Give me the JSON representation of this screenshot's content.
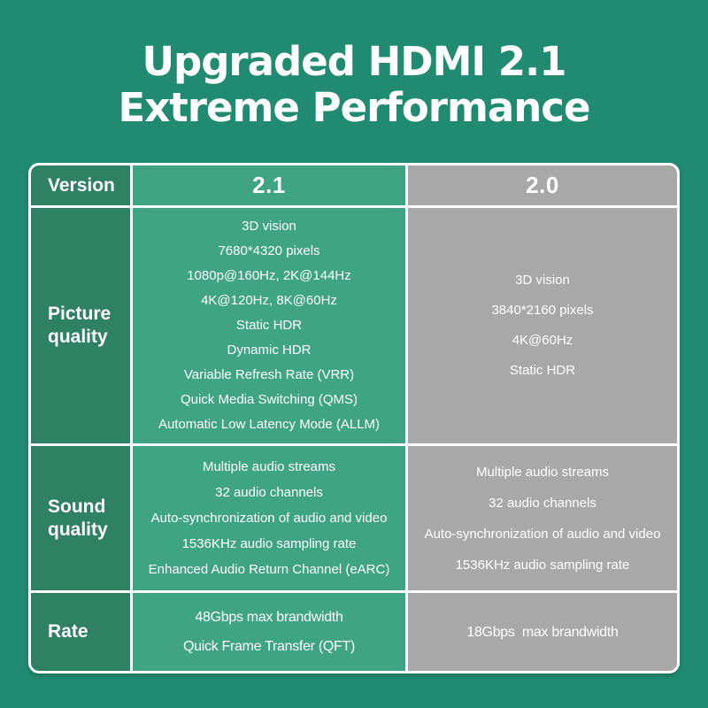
{
  "title": {
    "lines": [
      "Upgraded HDMI 2.1",
      "Extreme Performance"
    ]
  },
  "colors": {
    "page_background": "#208b71",
    "label_column": "#2e8163",
    "column_21": "#3ea481",
    "column_20": "#a8a8a8",
    "grid_lines": "#ffffff",
    "text": "#ffffff"
  },
  "chart_data": {
    "type": "table",
    "title": "Upgraded HDMI 2.1 Extreme Performance",
    "columns": [
      "Version",
      "2.1",
      "2.0"
    ],
    "rows": [
      {
        "label": [
          "Picture",
          "quality"
        ],
        "v21": [
          "3D vision",
          "7680*4320 pixels",
          "1080p@160Hz, 2K@144Hz",
          "4K@120Hz, 8K@60Hz",
          "Static HDR",
          "Dynamic HDR",
          "Variable Refresh Rate (VRR)",
          "Quick Media Switching (QMS)",
          "Automatic Low Latency Mode (ALLM)"
        ],
        "v20": [
          "3D vision",
          "3840*2160 pixels",
          "4K@60Hz",
          "Static HDR"
        ]
      },
      {
        "label": [
          "Sound",
          "quality"
        ],
        "v21": [
          "Multiple audio streams",
          "32 audio channels",
          "Auto-synchronization of audio and video",
          "1536KHz audio sampling rate",
          "Enhanced Audio Return Channel (eARC)"
        ],
        "v20": [
          "Multiple audio streams",
          "32 audio channels",
          "Auto-synchronization of audio and video",
          "1536KHz audio sampling rate"
        ]
      },
      {
        "label": "Rate",
        "v21": [
          "48Gbps max brandwidth",
          "Quick Frame Transfer (QFT)"
        ],
        "v20": [
          "18Gbps  max brandwidth"
        ]
      }
    ]
  }
}
